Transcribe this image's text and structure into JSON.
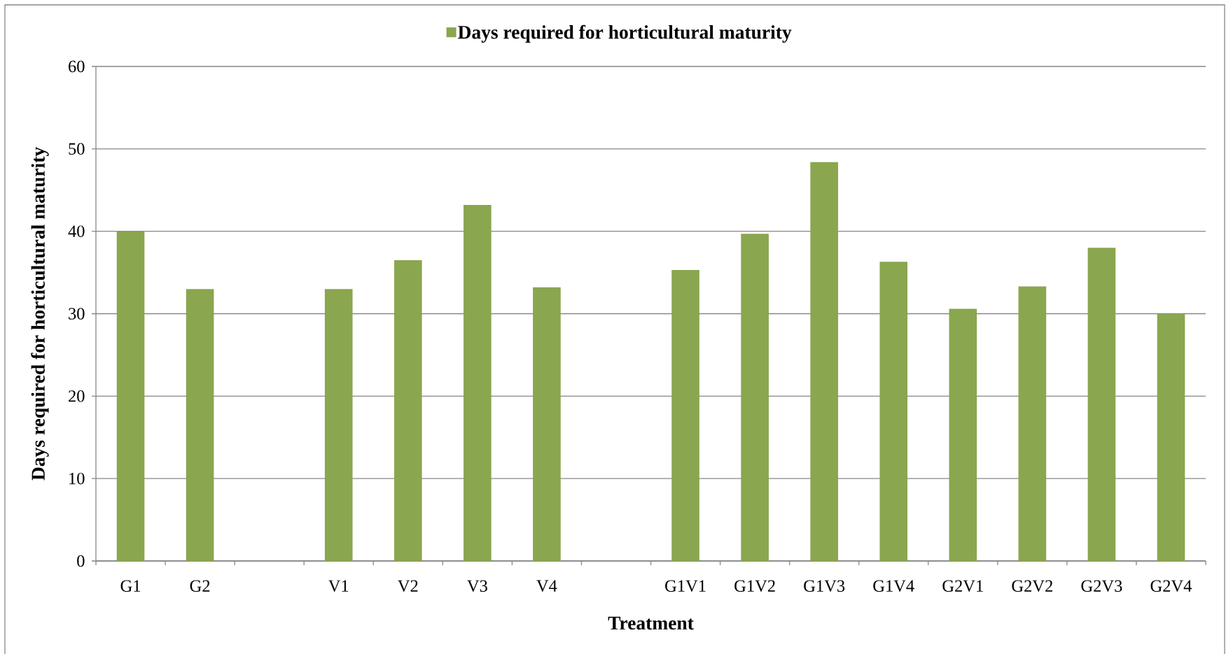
{
  "chart_data": {
    "type": "bar",
    "xlabel": "Treatment",
    "ylabel": "Days required for horticultural maturity",
    "categories": [
      "G1",
      "G2",
      null,
      "V1",
      "V2",
      "V3",
      "V4",
      null,
      "G1V1",
      "G1V2",
      "G1V3",
      "G1V4",
      "G2V1",
      "G2V2",
      "G2V3",
      "G2V4"
    ],
    "series": [
      {
        "name": "Days required for horticultural maturity",
        "color": "#8aa64e",
        "values": [
          40,
          33,
          null,
          33,
          36.5,
          43.2,
          33.2,
          null,
          35.3,
          39.7,
          48.4,
          36.3,
          30.6,
          33.3,
          38,
          30
        ]
      }
    ],
    "ylim": [
      0,
      60
    ],
    "yticks": [
      0,
      10,
      20,
      30,
      40,
      50,
      60
    ],
    "grid": "y",
    "legend": "top"
  }
}
